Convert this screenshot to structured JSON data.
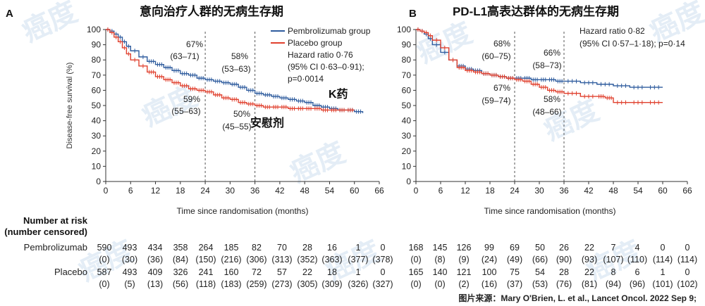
{
  "panels": [
    {
      "letter": "A",
      "title": "意向治疗人群的无病生存期",
      "legend": {
        "pembro": "Pembrolizumab group",
        "placebo": "Placebo group"
      },
      "hazard_lines": [
        "Hazard ratio 0·76",
        "(95% CI 0·63–0·91);",
        "p=0·0014"
      ],
      "annotations": [
        {
          "text": "67%",
          "sub": "(63–71)"
        },
        {
          "text": "58%",
          "sub": "(53–63)"
        },
        {
          "text": "59%",
          "sub": "(55–63)"
        },
        {
          "text": "50%",
          "sub": "(45–55)"
        }
      ],
      "cn_labels": [
        "K药",
        "安慰剂"
      ],
      "ylabel": "Disease-free survival (%)",
      "xlabel": "Time since randomisation (months)"
    },
    {
      "letter": "B",
      "title": "PD-L1高表达群体的无病生存期",
      "hazard_lines": [
        "Hazard ratio 0·82",
        "(95% CI 0·57–1·18); p=0·14"
      ],
      "annotations": [
        {
          "text": "68%",
          "sub": "(60–75)"
        },
        {
          "text": "66%",
          "sub": "(58–73)"
        },
        {
          "text": "67%",
          "sub": "(59–74)"
        },
        {
          "text": "58%",
          "sub": "(48–66)"
        }
      ],
      "xlabel": "Time since randomisation (months)"
    }
  ],
  "risk_table": {
    "header_line1": "Number at risk",
    "header_line2": "(number censored)",
    "rows": [
      {
        "label": "Pembrolizumab",
        "A_risk": [
          "590",
          "493",
          "434",
          "358",
          "264",
          "185",
          "82",
          "70",
          "28",
          "16",
          "1",
          "0"
        ],
        "A_cens": [
          "(0)",
          "(30)",
          "(36)",
          "(84)",
          "(150)",
          "(216)",
          "(306)",
          "(313)",
          "(352)",
          "(363)",
          "(377)",
          "(378)"
        ],
        "B_risk": [
          "168",
          "145",
          "126",
          "99",
          "69",
          "50",
          "26",
          "22",
          "7",
          "4",
          "0",
          "0"
        ],
        "B_cens": [
          "(0)",
          "(8)",
          "(9)",
          "(24)",
          "(49)",
          "(66)",
          "(90)",
          "(93)",
          "(107)",
          "(110)",
          "(114)",
          "(114)"
        ]
      },
      {
        "label": "Placebo",
        "A_risk": [
          "587",
          "493",
          "409",
          "326",
          "241",
          "160",
          "72",
          "57",
          "22",
          "18",
          "1",
          "0"
        ],
        "A_cens": [
          "(0)",
          "(5)",
          "(13)",
          "(56)",
          "(118)",
          "(183)",
          "(259)",
          "(273)",
          "(305)",
          "(309)",
          "(326)",
          "(327)"
        ],
        "B_risk": [
          "165",
          "140",
          "121",
          "100",
          "75",
          "54",
          "28",
          "22",
          "8",
          "6",
          "1",
          "0"
        ],
        "B_cens": [
          "(0)",
          "(0)",
          "(2)",
          "(16)",
          "(37)",
          "(53)",
          "(76)",
          "(81)",
          "(94)",
          "(96)",
          "(101)",
          "(102)"
        ]
      }
    ]
  },
  "source": "图片来源：Mary O'Brien, L. et al., Lancet Oncol. 2022 Sep 9;",
  "watermark": "癌度",
  "colors": {
    "pembro": "#2f5c9e",
    "placebo": "#e0402e",
    "axis": "#333333",
    "watermark": "#cfe0ef"
  },
  "chart_data": [
    {
      "type": "line",
      "title": "意向治疗人群的无病生存期",
      "xlabel": "Time since randomisation (months)",
      "ylabel": "Disease-free survival (%)",
      "xlim": [
        0,
        66
      ],
      "ylim": [
        0,
        100
      ],
      "xticks": [
        0,
        6,
        12,
        18,
        24,
        30,
        36,
        42,
        48,
        54,
        60,
        66
      ],
      "yticks": [
        0,
        10,
        20,
        30,
        40,
        50,
        60,
        70,
        80,
        90,
        100
      ],
      "reference_lines_x": [
        24,
        36
      ],
      "series": [
        {
          "name": "Pembrolizumab group",
          "x": [
            0,
            1,
            2,
            3,
            4,
            5,
            6,
            8,
            10,
            12,
            14,
            16,
            18,
            20,
            22,
            24,
            26,
            28,
            30,
            32,
            34,
            36,
            38,
            40,
            42,
            44,
            46,
            48,
            50,
            52,
            54,
            56,
            58,
            60,
            62
          ],
          "y": [
            100,
            99,
            97,
            95,
            92,
            89,
            86,
            82,
            79,
            77,
            75,
            73,
            71,
            70,
            68,
            67,
            66,
            65,
            64,
            62,
            60,
            58,
            57,
            56,
            55,
            54,
            53,
            52,
            50,
            49,
            48,
            47,
            47,
            46,
            45
          ]
        },
        {
          "name": "Placebo group",
          "x": [
            0,
            1,
            2,
            3,
            4,
            5,
            6,
            8,
            10,
            12,
            14,
            16,
            18,
            20,
            22,
            24,
            26,
            28,
            30,
            32,
            34,
            36,
            38,
            40,
            42,
            44,
            46,
            48,
            50,
            52,
            54,
            56,
            58,
            60
          ],
          "y": [
            100,
            98,
            95,
            92,
            88,
            84,
            80,
            76,
            72,
            69,
            67,
            65,
            63,
            61,
            60,
            59,
            57,
            55,
            54,
            52,
            51,
            50,
            49,
            49,
            49,
            48,
            48,
            48,
            48,
            47,
            47,
            47,
            47,
            47
          ]
        }
      ]
    },
    {
      "type": "line",
      "title": "PD-L1高表达群体的无病生存期",
      "xlabel": "Time since randomisation (months)",
      "ylabel": "",
      "xlim": [
        0,
        66
      ],
      "ylim": [
        0,
        100
      ],
      "xticks": [
        0,
        6,
        12,
        18,
        24,
        30,
        36,
        42,
        48,
        54,
        60,
        66
      ],
      "yticks": [
        0,
        10,
        20,
        30,
        40,
        50,
        60,
        70,
        80,
        90,
        100
      ],
      "reference_lines_x": [
        24,
        36
      ],
      "series": [
        {
          "name": "Pembrolizumab group",
          "x": [
            0,
            1,
            2,
            3,
            4,
            6,
            8,
            10,
            12,
            14,
            16,
            18,
            20,
            22,
            24,
            26,
            28,
            30,
            32,
            34,
            36,
            40,
            44,
            48,
            52,
            56,
            60
          ],
          "y": [
            100,
            99,
            97,
            94,
            90,
            85,
            80,
            76,
            74,
            73,
            71,
            70,
            69,
            68,
            68,
            68,
            67,
            67,
            67,
            66,
            66,
            65,
            64,
            63,
            62,
            62,
            62
          ]
        },
        {
          "name": "Placebo group",
          "x": [
            0,
            1,
            2,
            3,
            4,
            6,
            8,
            10,
            12,
            14,
            16,
            18,
            20,
            22,
            24,
            26,
            28,
            30,
            32,
            34,
            36,
            40,
            44,
            46,
            48,
            52,
            56,
            60
          ],
          "y": [
            100,
            99,
            98,
            96,
            93,
            88,
            80,
            75,
            73,
            72,
            71,
            70,
            69,
            68,
            67,
            66,
            64,
            62,
            60,
            59,
            58,
            56,
            56,
            55,
            52,
            52,
            52,
            52
          ]
        }
      ]
    }
  ]
}
